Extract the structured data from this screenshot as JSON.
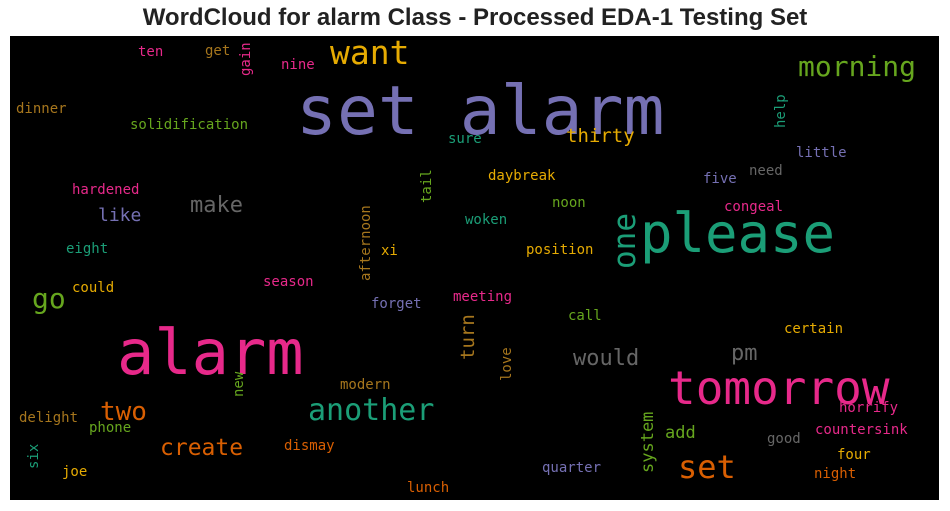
{
  "title": "WordCloud for alarm Class - Processed EDA-1 Testing Set",
  "palette": {
    "purple": "#7570b3",
    "pink": "#e7298a",
    "green": "#1b9e77",
    "orange": "#d95f02",
    "olive": "#66a61e",
    "gold": "#e6ab02",
    "brown": "#a6761d",
    "gray": "#666666",
    "background": "#000000"
  },
  "words": [
    {
      "text": "set alarm",
      "color": "#7570b3"
    },
    {
      "text": "alarm",
      "color": "#e7298a"
    },
    {
      "text": "please",
      "color": "#1b9e77"
    },
    {
      "text": "tomorrow",
      "color": "#e7298a"
    },
    {
      "text": "want",
      "color": "#e6ab02"
    },
    {
      "text": "morning",
      "color": "#66a61e"
    },
    {
      "text": "one",
      "color": "#1b9e77"
    },
    {
      "text": "another",
      "color": "#1b9e77"
    },
    {
      "text": "set",
      "color": "#d95f02"
    },
    {
      "text": "two",
      "color": "#d95f02"
    },
    {
      "text": "go",
      "color": "#66a61e"
    },
    {
      "text": "create",
      "color": "#d95f02"
    },
    {
      "text": "make",
      "color": "#666666"
    },
    {
      "text": "would",
      "color": "#666666"
    },
    {
      "text": "pm",
      "color": "#666666"
    },
    {
      "text": "thirty",
      "color": "#e6ab02"
    },
    {
      "text": "like",
      "color": "#7570b3"
    },
    {
      "text": "turn",
      "color": "#a6761d"
    },
    {
      "text": "system",
      "color": "#66a61e"
    },
    {
      "text": "add",
      "color": "#66a61e"
    },
    {
      "text": "ten",
      "color": "#e7298a"
    },
    {
      "text": "get",
      "color": "#a6761d"
    },
    {
      "text": "gain",
      "color": "#e7298a"
    },
    {
      "text": "nine",
      "color": "#e7298a"
    },
    {
      "text": "dinner",
      "color": "#a6761d"
    },
    {
      "text": "solidification",
      "color": "#66a61e"
    },
    {
      "text": "sure",
      "color": "#1b9e77"
    },
    {
      "text": "help",
      "color": "#1b9e77"
    },
    {
      "text": "little",
      "color": "#7570b3"
    },
    {
      "text": "hardened",
      "color": "#e7298a"
    },
    {
      "text": "tail",
      "color": "#66a61e"
    },
    {
      "text": "daybreak",
      "color": "#e6ab02"
    },
    {
      "text": "five",
      "color": "#7570b3"
    },
    {
      "text": "need",
      "color": "#666666"
    },
    {
      "text": "noon",
      "color": "#66a61e"
    },
    {
      "text": "congeal",
      "color": "#e7298a"
    },
    {
      "text": "afternoon",
      "color": "#a6761d"
    },
    {
      "text": "woken",
      "color": "#1b9e77"
    },
    {
      "text": "eight",
      "color": "#1b9e77"
    },
    {
      "text": "xi",
      "color": "#e6ab02"
    },
    {
      "text": "position",
      "color": "#e6ab02"
    },
    {
      "text": "season",
      "color": "#e7298a"
    },
    {
      "text": "could",
      "color": "#e6ab02"
    },
    {
      "text": "forget",
      "color": "#7570b3"
    },
    {
      "text": "meeting",
      "color": "#e7298a"
    },
    {
      "text": "call",
      "color": "#66a61e"
    },
    {
      "text": "certain",
      "color": "#e6ab02"
    },
    {
      "text": "love",
      "color": "#a6761d"
    },
    {
      "text": "new",
      "color": "#66a61e"
    },
    {
      "text": "modern",
      "color": "#a6761d"
    },
    {
      "text": "horrify",
      "color": "#e7298a"
    },
    {
      "text": "delight",
      "color": "#a6761d"
    },
    {
      "text": "phone",
      "color": "#66a61e"
    },
    {
      "text": "dismay",
      "color": "#d95f02"
    },
    {
      "text": "countersink",
      "color": "#e7298a"
    },
    {
      "text": "good",
      "color": "#666666"
    },
    {
      "text": "six",
      "color": "#1b9e77"
    },
    {
      "text": "joe",
      "color": "#e6ab02"
    },
    {
      "text": "quarter",
      "color": "#7570b3"
    },
    {
      "text": "four",
      "color": "#e6ab02"
    },
    {
      "text": "night",
      "color": "#d95f02"
    },
    {
      "text": "lunch",
      "color": "#d95f02"
    }
  ]
}
